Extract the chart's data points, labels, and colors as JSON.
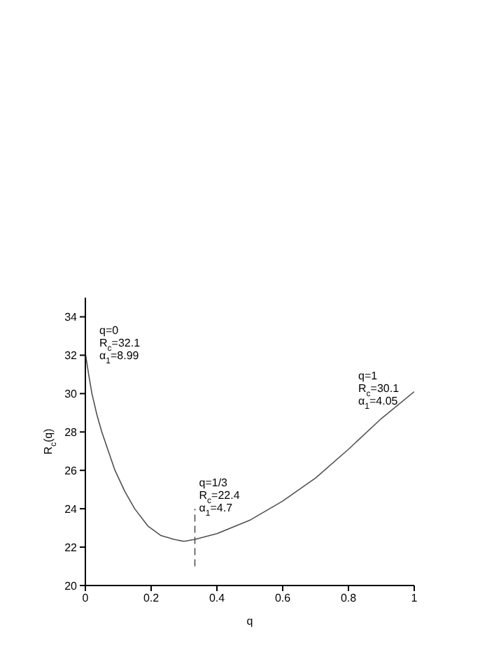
{
  "chart_data": {
    "type": "line",
    "xlabel": "q",
    "ylabel": "R$_{c}$(q)",
    "xlim": [
      0,
      1
    ],
    "xticks": [
      0,
      0.2,
      0.4,
      0.6,
      0.8,
      1
    ],
    "ylim": [
      20,
      35
    ],
    "yticks": [
      20,
      22,
      24,
      26,
      28,
      30,
      32,
      34
    ],
    "grid": false,
    "marker": "none",
    "series": [
      {
        "color": "#505050",
        "line_style": "solid",
        "x": [
          0,
          0.01,
          0.02,
          0.035,
          0.05,
          0.07,
          0.09,
          0.12,
          0.15,
          0.19,
          0.23,
          0.27,
          0.3,
          0.333,
          0.4,
          0.5,
          0.6,
          0.7,
          0.8,
          0.9,
          1
        ],
        "values": [
          32.1,
          31,
          30,
          28.9,
          28,
          27,
          26,
          24.9,
          24,
          23.1,
          22.6,
          22.4,
          22.3,
          22.4,
          22.7,
          23.4,
          24.4,
          25.6,
          27.1,
          28.7,
          30.1
        ]
      },
      {
        "color": "#505050",
        "line_style": "dashed",
        "x": [
          0.333,
          0.333
        ],
        "values": [
          21,
          24
        ]
      }
    ],
    "annotations": [
      {
        "text": "q=0\nR$_{c}$=32.1\nα$_{1}$=8.99",
        "x": 0,
        "y": 32.1
      },
      {
        "text": "q=1/3\nR$_{c}$=22.4\nα$_{1}$=4.7",
        "x": 0.333,
        "y": 22.4
      },
      {
        "text": "q=1\nR$_{c}$=30.1\nα$_{1}$=4.05",
        "x": 1,
        "y": 30.1
      }
    ]
  }
}
